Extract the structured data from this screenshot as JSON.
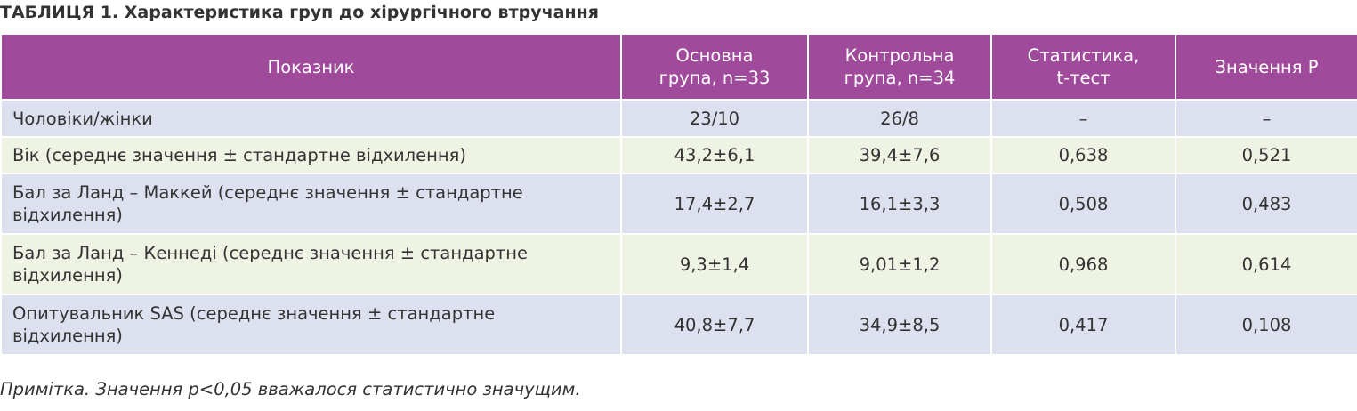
{
  "title": "ТАБЛИЦЯ 1. Характеристика груп до хірургічного втручання",
  "table": {
    "header": [
      "Показник",
      "Основна\nгрупа, n=33",
      "Контрольна\nгрупа, n=34",
      "Статистика,\nt-тест",
      "Значення Р"
    ],
    "rows": [
      [
        "Чоловіки/жінки",
        "23/10",
        "26/8",
        "–",
        "–"
      ],
      [
        "Вік (середнє значення ± стандартне відхилення)",
        "43,2±6,1",
        "39,4±7,6",
        "0,638",
        "0,521"
      ],
      [
        "Бал за Ланд – Маккей (середнє значення ± стандартне відхилення)",
        "17,4±2,7",
        "16,1±3,3",
        "0,508",
        "0,483"
      ],
      [
        "Бал за Ланд – Кеннеді (середнє значення ± стандартне відхилення)",
        "9,3±1,4",
        "9,01±1,2",
        "0,968",
        "0,614"
      ],
      [
        "Опитувальник SAS (середнє значення ± стандартне відхилення)",
        "40,8±7,7",
        "34,9±8,5",
        "0,417",
        "0,108"
      ]
    ]
  },
  "note": "Примітка. Значення p<0,05 вважалося статистично значущим."
}
